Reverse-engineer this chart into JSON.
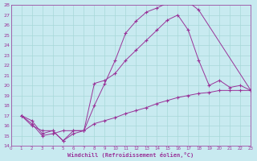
{
  "xlabel": "Windchill (Refroidissement éolien,°C)",
  "bg_color": "#c8eaf0",
  "grid_color": "#a8d8d8",
  "line_color": "#993399",
  "xlim": [
    0,
    23
  ],
  "ylim": [
    14,
    28
  ],
  "xticks": [
    0,
    1,
    2,
    3,
    4,
    5,
    6,
    7,
    8,
    9,
    10,
    11,
    12,
    13,
    14,
    15,
    16,
    17,
    18,
    19,
    20,
    21,
    22,
    23
  ],
  "yticks": [
    14,
    15,
    16,
    17,
    18,
    19,
    20,
    21,
    22,
    23,
    24,
    25,
    26,
    27,
    28
  ],
  "line1_x": [
    1,
    2,
    3,
    4,
    5,
    6,
    7,
    8,
    9,
    10,
    11,
    12,
    13,
    14,
    15,
    16,
    17,
    18,
    23
  ],
  "line1_y": [
    17.0,
    16.5,
    15.2,
    15.5,
    14.5,
    15.2,
    15.5,
    18.0,
    20.2,
    22.5,
    25.2,
    26.4,
    27.3,
    27.7,
    28.2,
    28.4,
    28.3,
    27.5,
    19.5
  ],
  "line2_x": [
    1,
    2,
    3,
    4,
    5,
    6,
    7,
    8,
    9,
    10,
    11,
    12,
    13,
    14,
    15,
    16,
    17,
    18,
    19,
    20,
    21,
    22,
    23
  ],
  "line2_y": [
    17.0,
    16.2,
    15.0,
    15.2,
    15.5,
    15.5,
    15.5,
    20.2,
    20.5,
    21.2,
    22.5,
    23.5,
    24.5,
    25.5,
    26.5,
    27.0,
    25.5,
    22.5,
    20.0,
    20.5,
    19.8,
    20.0,
    19.5
  ],
  "line3_x": [
    1,
    2,
    3,
    4,
    5,
    6,
    7,
    8,
    9,
    10,
    11,
    12,
    13,
    14,
    15,
    16,
    17,
    18,
    19,
    20,
    21,
    22,
    23
  ],
  "line3_y": [
    17.0,
    16.0,
    15.5,
    15.5,
    14.5,
    15.5,
    15.5,
    16.2,
    16.5,
    16.8,
    17.2,
    17.5,
    17.8,
    18.2,
    18.5,
    18.8,
    19.0,
    19.2,
    19.3,
    19.5,
    19.5,
    19.5,
    19.5
  ]
}
